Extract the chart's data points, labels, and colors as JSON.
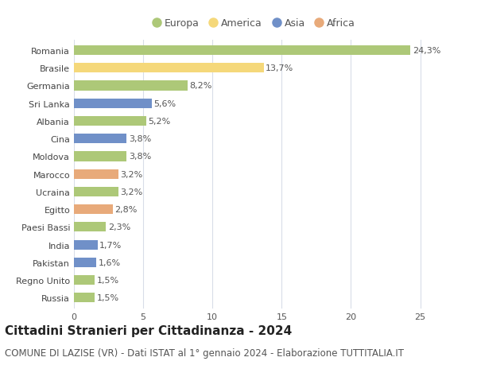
{
  "countries": [
    "Romania",
    "Brasile",
    "Germania",
    "Sri Lanka",
    "Albania",
    "Cina",
    "Moldova",
    "Marocco",
    "Ucraina",
    "Egitto",
    "Paesi Bassi",
    "India",
    "Pakistan",
    "Regno Unito",
    "Russia"
  ],
  "values": [
    24.3,
    13.7,
    8.2,
    5.6,
    5.2,
    3.8,
    3.8,
    3.2,
    3.2,
    2.8,
    2.3,
    1.7,
    1.6,
    1.5,
    1.5
  ],
  "labels": [
    "24,3%",
    "13,7%",
    "8,2%",
    "5,6%",
    "5,2%",
    "3,8%",
    "3,8%",
    "3,2%",
    "3,2%",
    "2,8%",
    "2,3%",
    "1,7%",
    "1,6%",
    "1,5%",
    "1,5%"
  ],
  "continents": [
    "Europa",
    "America",
    "Europa",
    "Asia",
    "Europa",
    "Asia",
    "Europa",
    "Africa",
    "Europa",
    "Africa",
    "Europa",
    "Asia",
    "Asia",
    "Europa",
    "Europa"
  ],
  "colors": {
    "Europa": "#adc878",
    "America": "#f5d87a",
    "Asia": "#7090c8",
    "Africa": "#e8aa7a"
  },
  "legend_order": [
    "Europa",
    "America",
    "Asia",
    "Africa"
  ],
  "title": "Cittadini Stranieri per Cittadinanza - 2024",
  "subtitle": "COMUNE DI LAZISE (VR) - Dati ISTAT al 1° gennaio 2024 - Elaborazione TUTTITALIA.IT",
  "xlim": [
    0,
    26
  ],
  "xticks": [
    0,
    5,
    10,
    15,
    20,
    25
  ],
  "background_color": "#ffffff",
  "grid_color": "#d8dde8",
  "bar_height": 0.55,
  "title_fontsize": 11,
  "subtitle_fontsize": 8.5,
  "label_fontsize": 8,
  "tick_fontsize": 8,
  "legend_fontsize": 9
}
